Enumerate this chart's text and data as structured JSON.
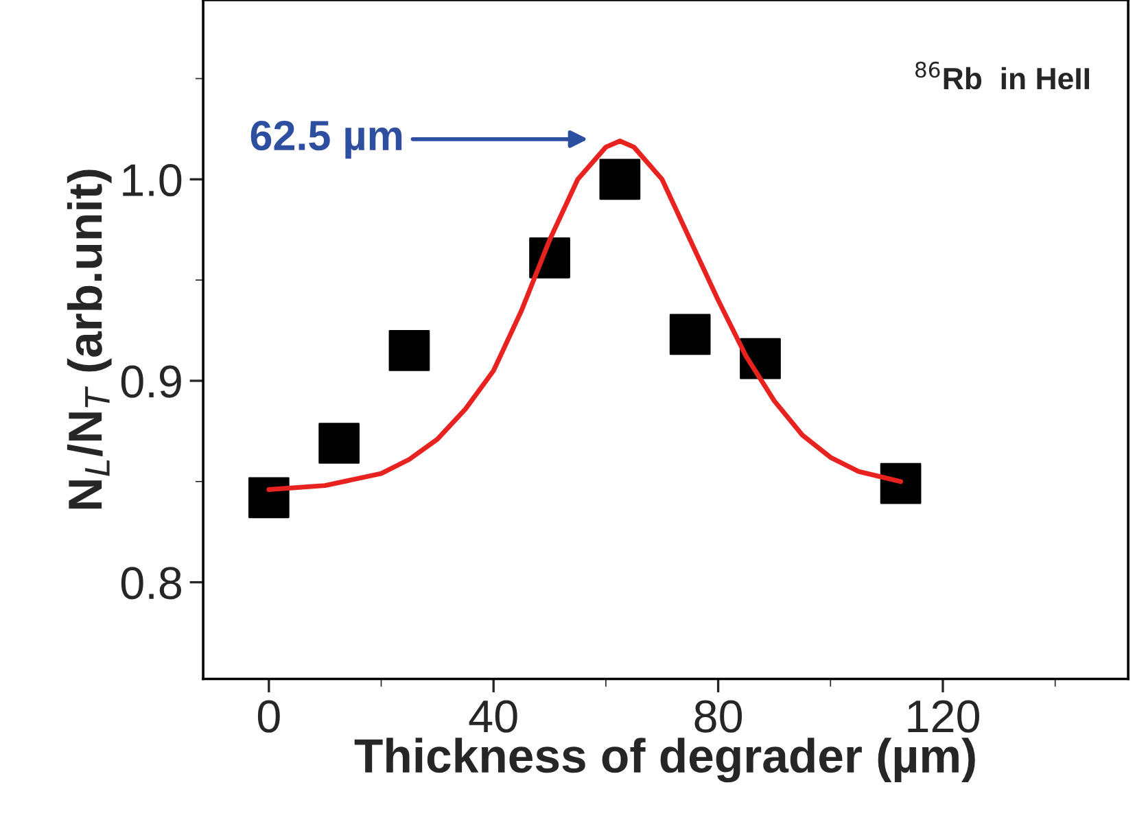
{
  "chart_data": {
    "type": "scatter",
    "xlabel": "Thickness of degrader (µm)",
    "ylabel": "N$_{L}$/N$_{T}$ (arb.unit)",
    "xlim": [
      -11.7,
      153
    ],
    "ylim": [
      0.752,
      1.089
    ],
    "xticks": [
      0,
      40,
      80,
      120
    ],
    "yticks": [
      0.8,
      0.9,
      {
        "value": 1.0,
        "label": "1.0"
      }
    ],
    "grid": false,
    "legend": false,
    "series": [
      {
        "marker": "square",
        "color": "#000000",
        "x": [
          0,
          12.5,
          25,
          50,
          62.5,
          75,
          87.5,
          112.5
        ],
        "values": [
          0.842,
          0.869,
          0.915,
          0.961,
          1.0,
          0.923,
          0.911,
          0.849
        ]
      },
      {
        "type": "line",
        "marker": "none",
        "line_style": "solid",
        "color": "#e8231f",
        "x": [
          0,
          10,
          20,
          25,
          30,
          35,
          40,
          45,
          50,
          55,
          60,
          62.5,
          65,
          70,
          75,
          80,
          85,
          90,
          95,
          100,
          105,
          112.5
        ],
        "values": [
          0.846,
          0.848,
          0.854,
          0.861,
          0.871,
          0.886,
          0.905,
          0.935,
          0.97,
          1.0,
          1.016,
          1.019,
          1.016,
          1.0,
          0.97,
          0.94,
          0.912,
          0.89,
          0.873,
          0.862,
          0.855,
          0.85
        ]
      }
    ],
    "annotations": [
      "62.5 µm",
      "$^{86}$Rb  in HeII"
    ]
  }
}
